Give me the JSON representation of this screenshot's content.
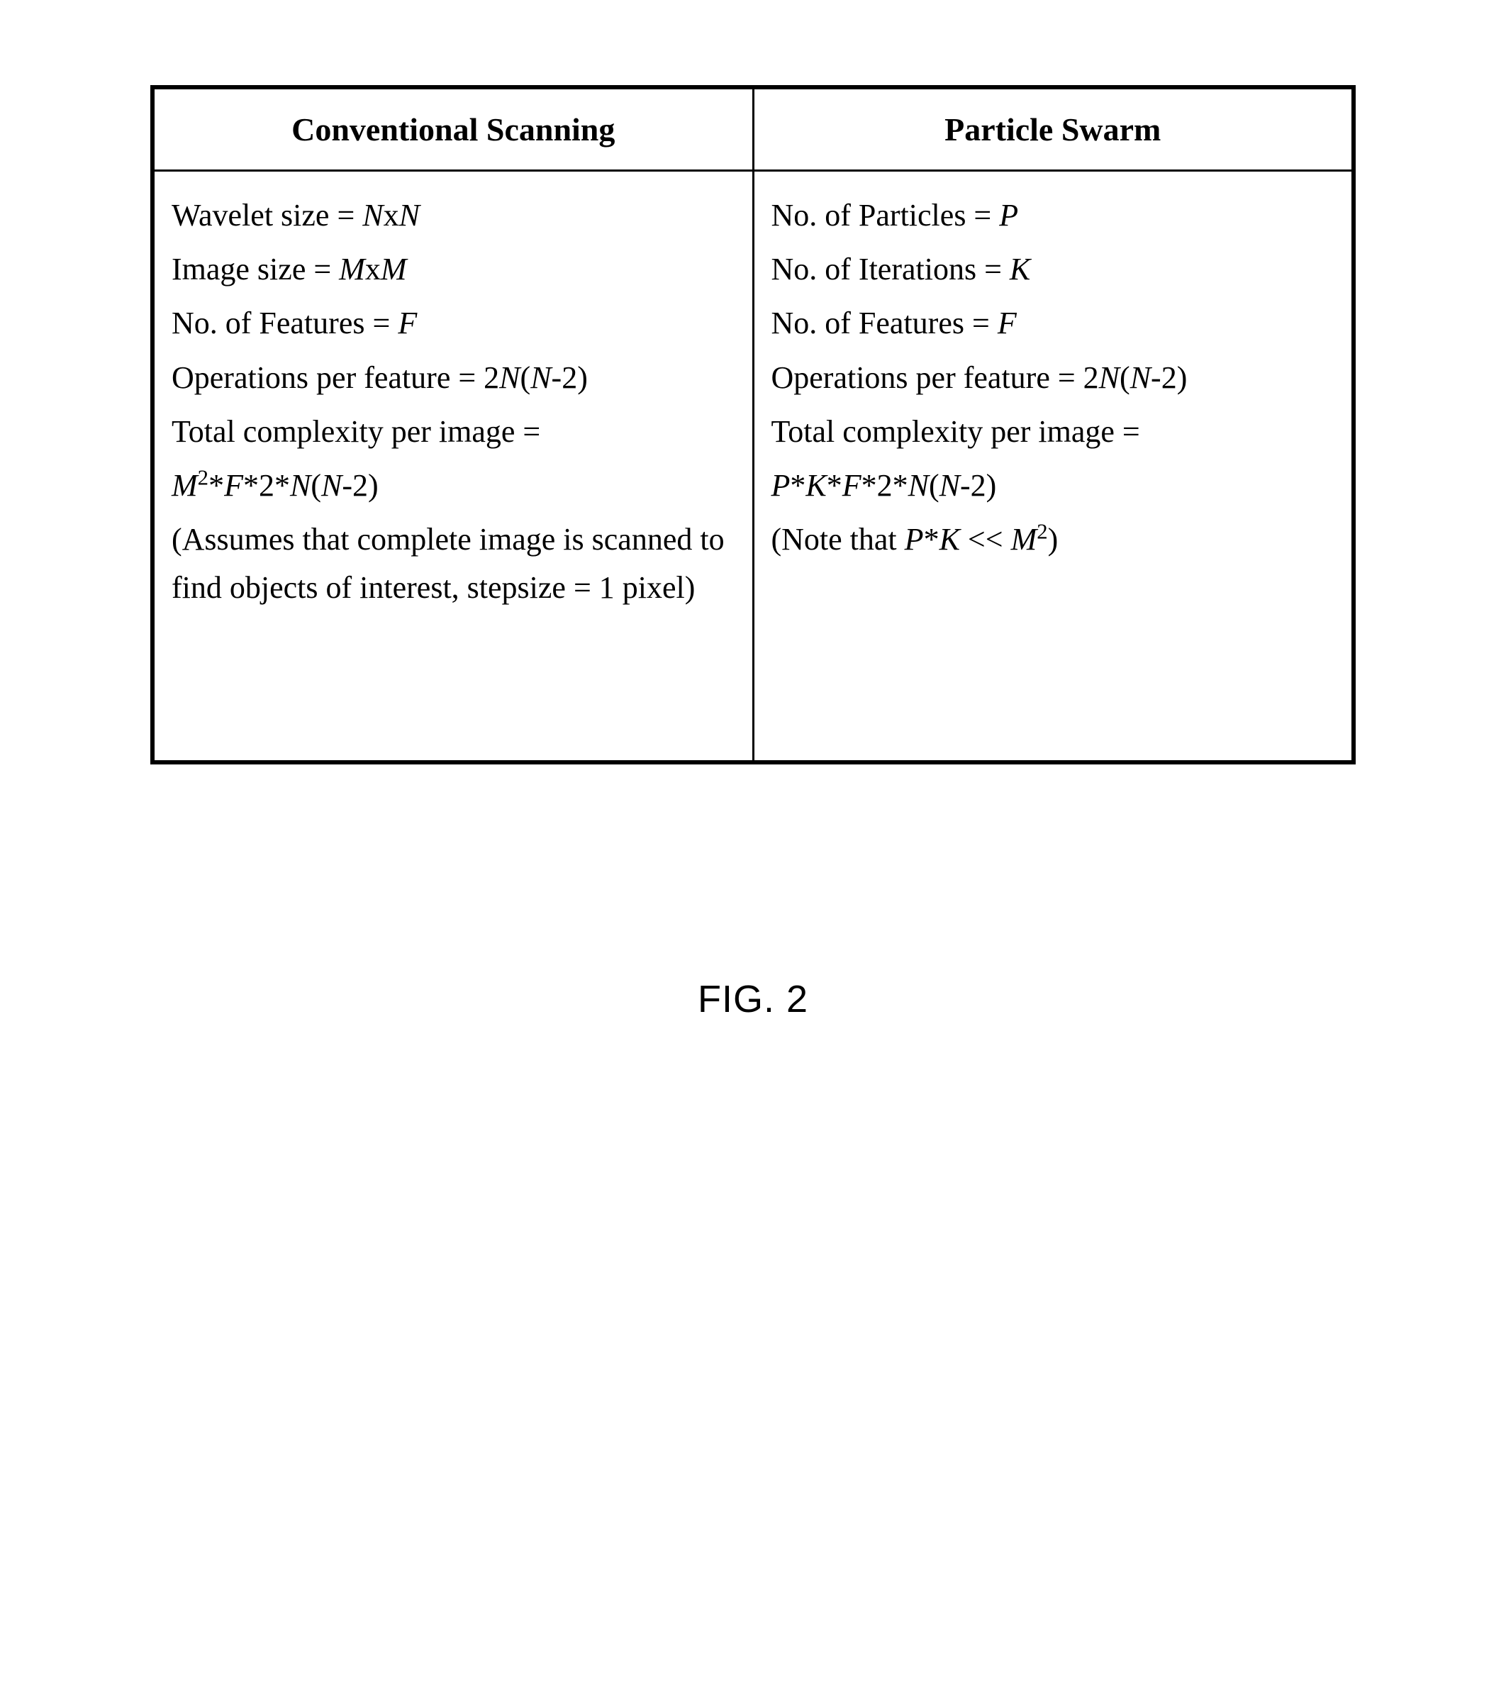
{
  "table": {
    "headers": {
      "left": "Conventional Scanning",
      "right": "Particle Swarm"
    },
    "left": {
      "l1_pre": "Wavelet size = ",
      "l1_var1": "N",
      "l1_mid": "x",
      "l1_var2": "N",
      "l2_pre": "Image size = ",
      "l2_var1": "M",
      "l2_mid": "x",
      "l2_var2": "M",
      "l3_pre": "No. of Features = ",
      "l3_var": "F",
      "l4_pre": "Operations per feature = 2",
      "l4_var1": "N",
      "l4_open": "(",
      "l4_var2": "N",
      "l4_post": "-2)",
      "l5": "Total complexity per image =",
      "l6_v1": "M",
      "l6_sup1": "2",
      "l6_s1": "*",
      "l6_v2": "F",
      "l6_s2": "*2*",
      "l6_v3": "N",
      "l6_open": "(",
      "l6_v4": "N",
      "l6_post": "-2)",
      "l7": "(Assumes that complete image is scanned to find objects of interest, stepsize = 1 pixel)"
    },
    "right": {
      "l1_pre": "No. of Particles = ",
      "l1_var": "P",
      "l2_pre": "No. of Iterations = ",
      "l2_var": "K",
      "l3_pre": "No. of Features = ",
      "l3_var": "F",
      "l4_pre": "Operations per feature = 2",
      "l4_var1": "N",
      "l4_open": "(",
      "l4_var2": "N",
      "l4_post": "-2)",
      "l5": "Total complexity per image =",
      "l6_v1": "P",
      "l6_s1": "*",
      "l6_v2": "K",
      "l6_s2": "*",
      "l6_v3": "F",
      "l6_s3": "*2*",
      "l6_v4": "N",
      "l6_open": "(",
      "l6_v5": "N",
      "l6_post": "-2)",
      "l7_pre": "(Note that ",
      "l7_v1": "P",
      "l7_s1": "*",
      "l7_v2": "K",
      "l7_mid": " << ",
      "l7_v3": "M",
      "l7_sup": "2",
      "l7_post": ")"
    }
  },
  "caption": "FIG. 2",
  "style": {
    "border_color": "#000000",
    "background": "#ffffff",
    "header_fontsize": 46,
    "body_fontsize": 44,
    "caption_fontsize": 54
  }
}
